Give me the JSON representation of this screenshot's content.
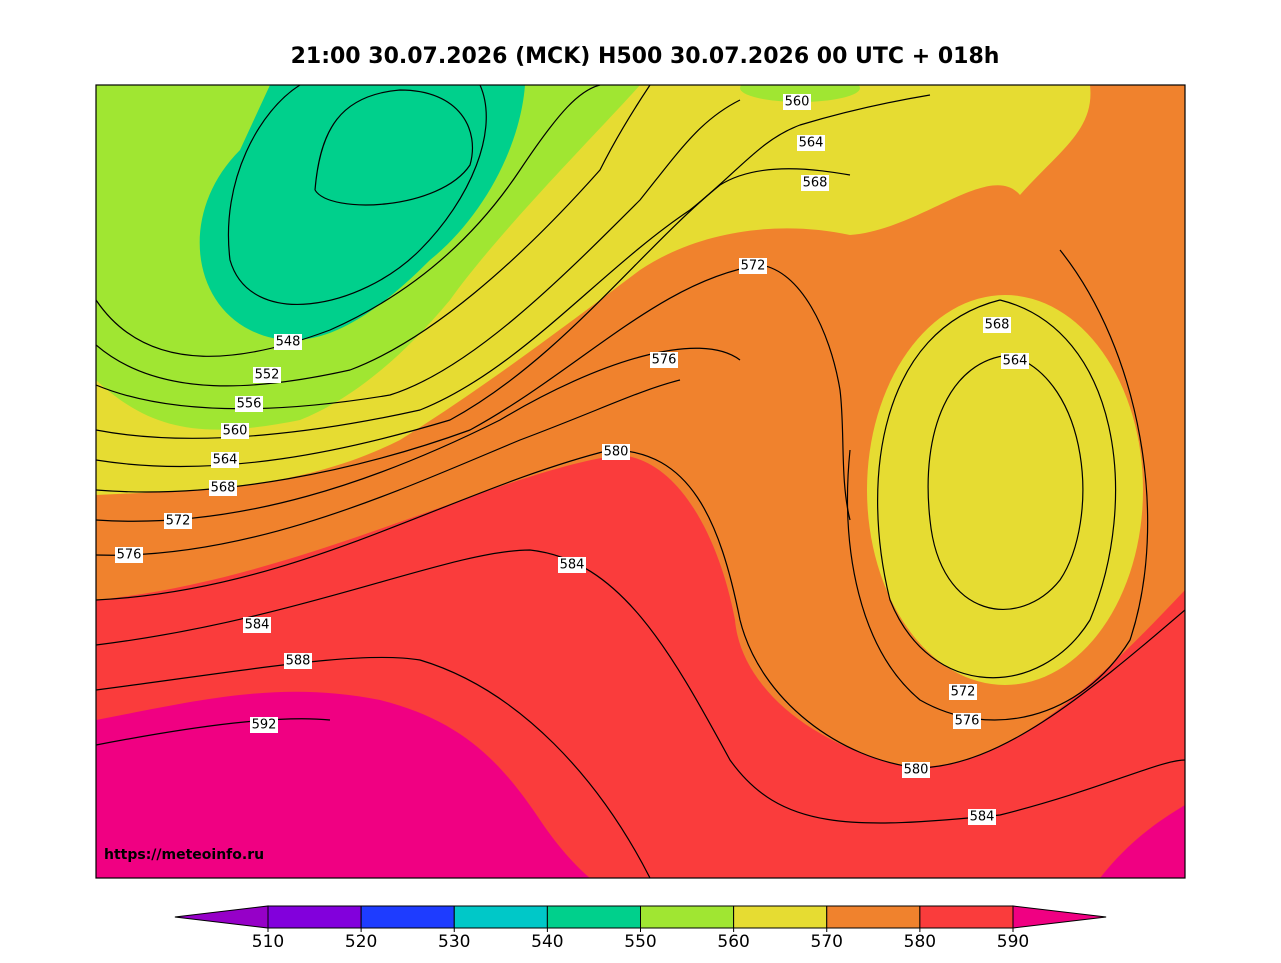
{
  "title": "21:00 30.07.2026 (MCK) H500  30.07.2026 00 UTC + 018h",
  "watermark": "https://meteoinfo.ru",
  "contour_labels": [
    560,
    564,
    568,
    572,
    576,
    548,
    552,
    556,
    560,
    564,
    568,
    572,
    576,
    580,
    584,
    584,
    588,
    592,
    568,
    564,
    572,
    576,
    580,
    584
  ],
  "colorbar": {
    "ticks": [
      510,
      520,
      530,
      540,
      550,
      560,
      570,
      580,
      590
    ],
    "colors": [
      "#9600c8",
      "#8200dc",
      "#1e3cff",
      "#00c8c8",
      "#00d08c",
      "#a0e632",
      "#e6dc32",
      "#f0822d",
      "#fa3c3c",
      "#f00082"
    ]
  }
}
